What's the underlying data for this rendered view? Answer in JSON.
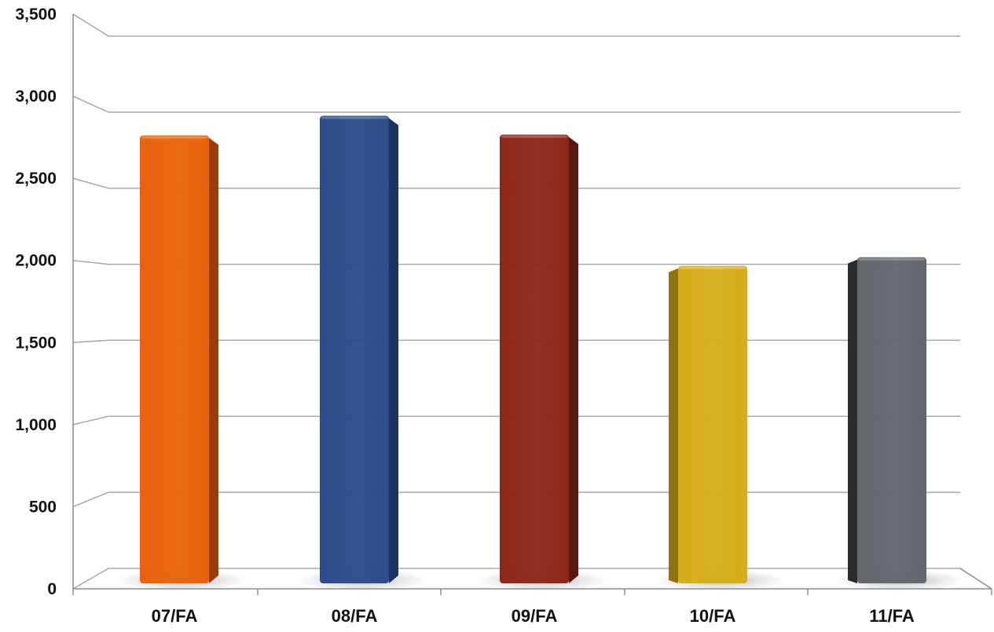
{
  "chart_data": {
    "type": "bar",
    "title": "",
    "xlabel": "",
    "ylabel": "",
    "categories": [
      "07/FA",
      "08/FA",
      "09/FA",
      "10/FA",
      "11/FA"
    ],
    "values": [
      2850,
      2975,
      2855,
      2020,
      2075
    ],
    "ylim": [
      0,
      3500
    ],
    "yticks": [
      0,
      500,
      1000,
      1500,
      2000,
      2500,
      3000,
      3500
    ],
    "ytick_labels": [
      "0",
      "500",
      "1,000",
      "1,500",
      "2,000",
      "2,500",
      "3,000",
      "3,500"
    ],
    "grid": true,
    "legend": "none",
    "style": "3d-column",
    "bar_colors": [
      "#e8620a",
      "#2c4b8a",
      "#8c2618",
      "#d6ad1a",
      "#62666d"
    ],
    "bar_side_colors": [
      "#9a3e05",
      "#1c3260",
      "#5a170e",
      "#8f7310",
      "#2a2b2e"
    ]
  }
}
